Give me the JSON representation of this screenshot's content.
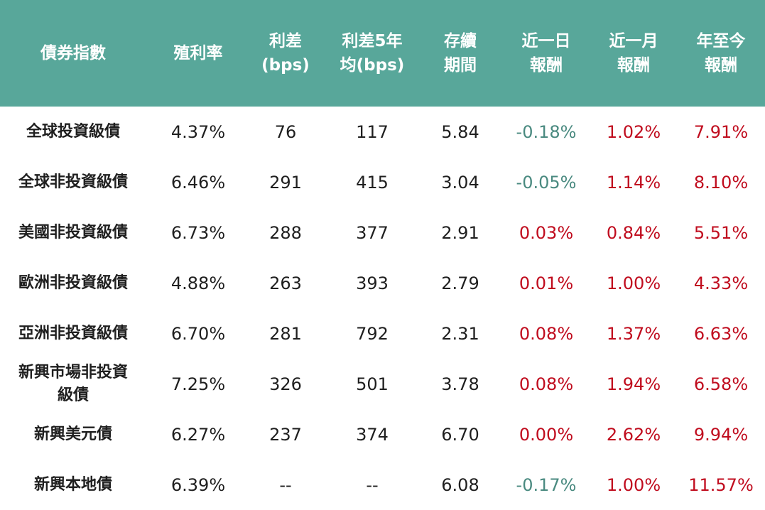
{
  "chart_data": {
    "type": "table",
    "columns": [
      [
        "債券指數"
      ],
      [
        "殖利率"
      ],
      [
        "利差",
        "(bps)"
      ],
      [
        "利差5年",
        "均(bps)"
      ],
      [
        "存續",
        "期間"
      ],
      [
        "近一日",
        "報酬"
      ],
      [
        "近一月",
        "報酬"
      ],
      [
        "年至今",
        "報酬"
      ]
    ],
    "rows": [
      {
        "name": [
          "全球投資級債"
        ],
        "yield": "4.37%",
        "spread": "76",
        "spread5y": "117",
        "duration": "5.84",
        "r1d": "-0.18%",
        "r1m": "1.02%",
        "ytd": "7.91%"
      },
      {
        "name": [
          "全球非投資級債"
        ],
        "yield": "6.46%",
        "spread": "291",
        "spread5y": "415",
        "duration": "3.04",
        "r1d": "-0.05%",
        "r1m": "1.14%",
        "ytd": "8.10%"
      },
      {
        "name": [
          "美國非投資級債"
        ],
        "yield": "6.73%",
        "spread": "288",
        "spread5y": "377",
        "duration": "2.91",
        "r1d": "0.03%",
        "r1m": "0.84%",
        "ytd": "5.51%"
      },
      {
        "name": [
          "歐洲非投資級債"
        ],
        "yield": "4.88%",
        "spread": "263",
        "spread5y": "393",
        "duration": "2.79",
        "r1d": "0.01%",
        "r1m": "1.00%",
        "ytd": "4.33%"
      },
      {
        "name": [
          "亞洲非投資級債"
        ],
        "yield": "6.70%",
        "spread": "281",
        "spread5y": "792",
        "duration": "2.31",
        "r1d": "0.08%",
        "r1m": "1.37%",
        "ytd": "6.63%"
      },
      {
        "name": [
          "新興市場非投資",
          "級債"
        ],
        "yield": "7.25%",
        "spread": "326",
        "spread5y": "501",
        "duration": "3.78",
        "r1d": "0.08%",
        "r1m": "1.94%",
        "ytd": "6.58%"
      },
      {
        "name": [
          "新興美元債"
        ],
        "yield": "6.27%",
        "spread": "237",
        "spread5y": "374",
        "duration": "6.70",
        "r1d": "0.00%",
        "r1m": "2.62%",
        "ytd": "9.94%"
      },
      {
        "name": [
          "新興本地債"
        ],
        "yield": "6.39%",
        "spread": "--",
        "spread5y": "--",
        "duration": "6.08",
        "r1d": "-0.17%",
        "r1m": "1.00%",
        "ytd": "11.57%"
      }
    ]
  },
  "colors": {
    "header_bg": "#58a79a",
    "header_text": "#ffffff",
    "negative": "#4a8a80",
    "positive": "#c00c1e",
    "body_text": "#1f1f1f"
  }
}
